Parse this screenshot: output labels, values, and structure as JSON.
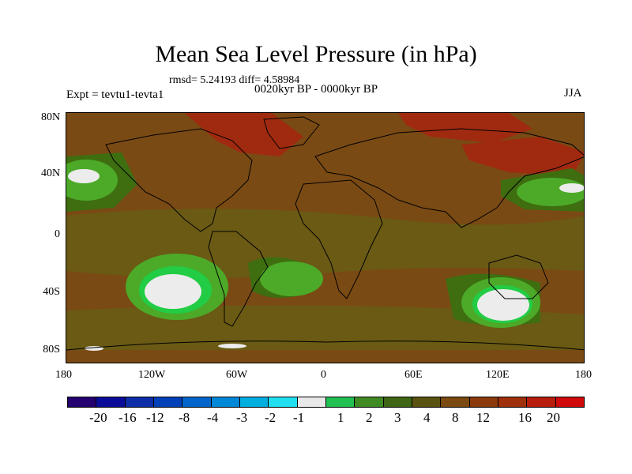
{
  "title": "Mean Sea Level Pressure (in hPa)",
  "stats": "rmsd= 5.24193 diff= 4.58984",
  "experiment": "Expt = tevtu1-tevta1",
  "period": "0020kyr BP - 0000kyr BP",
  "season": "JJA",
  "map": {
    "projection": "cylindrical equidistant",
    "lat_ticks": [
      "80N",
      "40N",
      "0",
      "40S",
      "80S"
    ],
    "lon_ticks": [
      "180",
      "120W",
      "60W",
      "0",
      "60E",
      "120E",
      "180"
    ],
    "field_colors": {
      "background": "#7a4a14",
      "warm": "#a02a10",
      "mid": "#6a5a14",
      "green": "#3e6e10",
      "lightgreen": "#4caa28",
      "brightgreen": "#22cc44",
      "white": "#ececec",
      "coast": "#000000"
    }
  },
  "colorbar": {
    "colors": [
      "#240070",
      "#0c0c9a",
      "#0d2ea8",
      "#0040b8",
      "#0066cc",
      "#0088d8",
      "#00aee0",
      "#20e0f0",
      "#e8e8e8",
      "#22c050",
      "#3f8a22",
      "#3e6614",
      "#5a5210",
      "#7a4a10",
      "#8a3a0c",
      "#a0300c",
      "#b81c0c",
      "#d00a0a"
    ],
    "labels": [
      "-20",
      "-16",
      "-12",
      "-8",
      "-4",
      "-3",
      "-2",
      "-1",
      "1",
      "2",
      "3",
      "4",
      "8",
      "12",
      "16",
      "20"
    ]
  }
}
